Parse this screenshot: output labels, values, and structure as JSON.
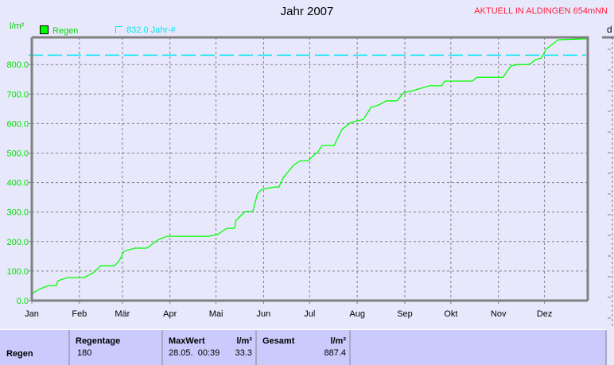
{
  "header": {
    "title": "Jahr 2007",
    "station": "AKTUELL IN ALDINGEN 654mNN",
    "right_panel_label": "d"
  },
  "chart_data": {
    "type": "line",
    "title": "Jahr 2007",
    "ylabel": "l/m²",
    "ylim": [
      0,
      890
    ],
    "yticks": [
      "0.0",
      "100.0",
      "200.0",
      "300.0",
      "400.0",
      "500.0",
      "600.0",
      "700.0",
      "800.0"
    ],
    "xticks": [
      "Jan",
      "Feb",
      "Mär",
      "Apr",
      "Mai",
      "Jun",
      "Jul",
      "Aug",
      "Sep",
      "Okt",
      "Nov",
      "Dez"
    ],
    "grid": true,
    "legend_position": "top-left",
    "series": [
      {
        "name": "Regen",
        "color": "#00ff00",
        "points": [
          [
            "01-01",
            22
          ],
          [
            "01-03",
            30
          ],
          [
            "01-07",
            41
          ],
          [
            "01-12",
            51
          ],
          [
            "01-17",
            51
          ],
          [
            "01-18",
            67
          ],
          [
            "01-24",
            78
          ],
          [
            "02-04",
            78
          ],
          [
            "02-10",
            94
          ],
          [
            "02-15",
            118
          ],
          [
            "02-24",
            118
          ],
          [
            "02-27",
            135
          ],
          [
            "03-02",
            167
          ],
          [
            "03-09",
            178
          ],
          [
            "03-17",
            178
          ],
          [
            "03-24",
            205
          ],
          [
            "03-30",
            218
          ],
          [
            "04-26",
            218
          ],
          [
            "05-02",
            224
          ],
          [
            "05-08",
            245
          ],
          [
            "05-13",
            245
          ],
          [
            "05-14",
            272
          ],
          [
            "05-20",
            302
          ],
          [
            "05-25",
            302
          ],
          [
            "05-28",
            363
          ],
          [
            "05-31",
            377
          ],
          [
            "06-08",
            385
          ],
          [
            "06-11",
            385
          ],
          [
            "06-14",
            418
          ],
          [
            "06-17",
            437
          ],
          [
            "06-21",
            461
          ],
          [
            "06-25",
            474
          ],
          [
            "06-30",
            474
          ],
          [
            "07-05",
            499
          ],
          [
            "07-06",
            501
          ],
          [
            "07-09",
            526
          ],
          [
            "07-17",
            526
          ],
          [
            "07-22",
            580
          ],
          [
            "07-28",
            604
          ],
          [
            "08-05",
            614
          ],
          [
            "08-10",
            655
          ],
          [
            "08-15",
            663
          ],
          [
            "08-20",
            677
          ],
          [
            "08-27",
            677
          ],
          [
            "08-31",
            704
          ],
          [
            "09-08",
            714
          ],
          [
            "09-17",
            728
          ],
          [
            "09-25",
            728
          ],
          [
            "09-27",
            744
          ],
          [
            "10-15",
            744
          ],
          [
            "10-18",
            757
          ],
          [
            "11-04",
            757
          ],
          [
            "11-09",
            795
          ],
          [
            "11-13",
            800
          ],
          [
            "11-21",
            800
          ],
          [
            "11-25",
            816
          ],
          [
            "11-29",
            822
          ],
          [
            "12-02",
            852
          ],
          [
            "12-10",
            884
          ],
          [
            "12-28",
            887.4
          ]
        ]
      }
    ],
    "reference": {
      "label": "832.0 Jahr-#",
      "value": 832.0,
      "color": "#00e8f0"
    }
  },
  "table": {
    "row_label": "Regen",
    "regentage_header": "Regentage",
    "regentage_value": "180",
    "maxwert_header": "MaxWert",
    "maxwert_unit": "l/m²",
    "maxwert_date": "28.05.  00:39",
    "maxwert_value": "33.3",
    "gesamt_header": "Gesamt",
    "gesamt_unit": "l/m²",
    "gesamt_value": "887.4"
  }
}
